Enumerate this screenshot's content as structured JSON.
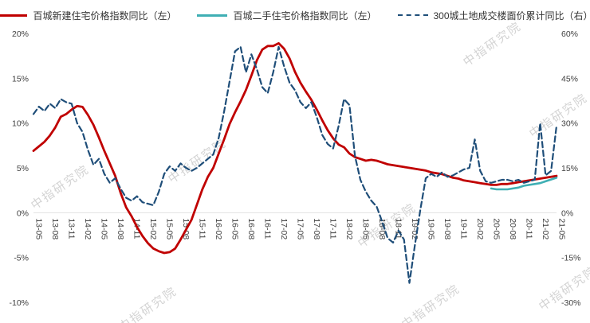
{
  "watermark": {
    "text": "中指研究院"
  },
  "legend": [
    {
      "label": "百城新建住宅价格指数同比（左）",
      "color": "#c00000",
      "style": "solid"
    },
    {
      "label": "百城二手住宅价格指数同比（左）",
      "color": "#3fafb4",
      "style": "solid"
    },
    {
      "label": "300城土地成交楼面价累计同比（右）",
      "color": "#1f4e79",
      "style": "dashed"
    }
  ],
  "chart_data": {
    "type": "line",
    "title": "",
    "x": [
      "13-05",
      "13-06",
      "13-07",
      "13-08",
      "13-09",
      "13-10",
      "13-11",
      "13-12",
      "14-01",
      "14-02",
      "14-03",
      "14-04",
      "14-05",
      "14-06",
      "14-07",
      "14-08",
      "14-09",
      "14-10",
      "14-11",
      "14-12",
      "15-01",
      "15-02",
      "15-03",
      "15-04",
      "15-05",
      "15-06",
      "15-07",
      "15-08",
      "15-09",
      "15-10",
      "15-11",
      "15-12",
      "16-01",
      "16-02",
      "16-03",
      "16-04",
      "16-05",
      "16-06",
      "16-07",
      "16-08",
      "16-09",
      "16-10",
      "16-11",
      "16-12",
      "17-01",
      "17-02",
      "17-03",
      "17-04",
      "17-05",
      "17-06",
      "17-07",
      "17-08",
      "17-09",
      "17-10",
      "17-11",
      "17-12",
      "18-01",
      "18-02",
      "18-03",
      "18-04",
      "18-05",
      "18-06",
      "18-07",
      "18-08",
      "18-09",
      "18-10",
      "18-11",
      "18-12",
      "19-01",
      "19-02",
      "19-03",
      "19-04",
      "19-05",
      "19-06",
      "19-07",
      "19-08",
      "19-09",
      "19-10",
      "19-11",
      "19-12",
      "20-01",
      "20-02",
      "20-03",
      "20-04",
      "20-05",
      "20-06",
      "20-07",
      "20-08",
      "20-09",
      "20-10",
      "20-11",
      "20-12",
      "21-01",
      "21-02",
      "21-03",
      "21-04",
      "21-05"
    ],
    "x_tick_every": 3,
    "left_axis": {
      "min": -10,
      "max": 20,
      "tick_values": [
        20,
        15,
        10,
        5,
        0,
        -5,
        -10
      ],
      "tick_labels": [
        "20%",
        "15%",
        "10%",
        "5%",
        "0%",
        "-5%",
        "-10%"
      ]
    },
    "right_axis": {
      "min": -30,
      "max": 60,
      "tick_values": [
        60,
        45,
        30,
        15,
        0,
        -15,
        -30
      ],
      "tick_labels": [
        "60%",
        "45%",
        "30%",
        "15%",
        "0%",
        "-15%",
        "-30%"
      ]
    },
    "legend_position": "top",
    "grid": false,
    "series": [
      {
        "id": "new-home-price-yoy",
        "name": "百城新建住宅价格指数同比（左）",
        "axis": "left",
        "color": "#c00000",
        "width": 2.8,
        "dash": null,
        "values": [
          6.9,
          7.4,
          7.9,
          8.6,
          9.5,
          10.7,
          11.0,
          11.5,
          11.9,
          11.8,
          10.9,
          9.8,
          8.4,
          6.9,
          5.5,
          4.1,
          2.2,
          0.6,
          -0.4,
          -1.6,
          -2.6,
          -3.4,
          -4.0,
          -4.3,
          -4.5,
          -4.4,
          -4.0,
          -3.0,
          -1.9,
          -0.8,
          0.9,
          2.6,
          4.0,
          5.0,
          6.6,
          8.2,
          9.9,
          11.2,
          12.4,
          13.7,
          15.3,
          17.0,
          18.2,
          18.6,
          18.6,
          18.9,
          18.3,
          17.2,
          15.7,
          14.5,
          13.5,
          12.6,
          11.5,
          10.3,
          9.2,
          8.3,
          7.6,
          7.3,
          6.6,
          6.2,
          6.0,
          5.8,
          5.9,
          5.8,
          5.6,
          5.4,
          5.3,
          5.2,
          5.1,
          5.0,
          4.9,
          4.8,
          4.7,
          4.5,
          4.4,
          4.3,
          4.1,
          3.9,
          3.8,
          3.6,
          3.5,
          3.4,
          3.3,
          3.2,
          3.1,
          3.1,
          3.2,
          3.2,
          3.3,
          3.4,
          3.5,
          3.6,
          3.7,
          3.8,
          3.9,
          4.0,
          4.1
        ]
      },
      {
        "id": "secondhand-price-yoy",
        "name": "百城二手住宅价格指数同比（左）",
        "axis": "left",
        "color": "#3fafb4",
        "width": 2.6,
        "dash": null,
        "values": [
          null,
          null,
          null,
          null,
          null,
          null,
          null,
          null,
          null,
          null,
          null,
          null,
          null,
          null,
          null,
          null,
          null,
          null,
          null,
          null,
          null,
          null,
          null,
          null,
          null,
          null,
          null,
          null,
          null,
          null,
          null,
          null,
          null,
          null,
          null,
          null,
          null,
          null,
          null,
          null,
          null,
          null,
          null,
          null,
          null,
          null,
          null,
          null,
          null,
          null,
          null,
          null,
          null,
          null,
          null,
          null,
          null,
          null,
          null,
          null,
          null,
          null,
          null,
          null,
          null,
          null,
          null,
          null,
          null,
          null,
          null,
          null,
          null,
          null,
          null,
          null,
          null,
          null,
          null,
          null,
          null,
          null,
          null,
          null,
          2.7,
          2.6,
          2.6,
          2.6,
          2.7,
          2.8,
          3.0,
          3.1,
          3.2,
          3.3,
          3.5,
          3.7,
          3.9
        ]
      },
      {
        "id": "land-floor-price-yoy",
        "name": "300城土地成交楼面价累计同比（右）",
        "axis": "right",
        "color": "#1f4e79",
        "width": 2.2,
        "dash": "7 4",
        "values": [
          33,
          35.5,
          34,
          36.5,
          35,
          38,
          37,
          36.5,
          30,
          27,
          21,
          16,
          18,
          13,
          10,
          11.5,
          8,
          5,
          4,
          5.5,
          3.5,
          3,
          2.5,
          7,
          13,
          15.5,
          14,
          16.5,
          15,
          14,
          15,
          16.5,
          18,
          19.5,
          25,
          34,
          44,
          54,
          55.5,
          47,
          53,
          48,
          42,
          40,
          47,
          55.5,
          49,
          43.5,
          41,
          37,
          35,
          37,
          32,
          26,
          23,
          21.5,
          29,
          38,
          36,
          19,
          11,
          7,
          4,
          2,
          -3,
          -8.5,
          -10,
          -6,
          -9,
          -23.5,
          -11,
          1,
          11.5,
          13,
          12,
          13.5,
          12,
          12.5,
          13.5,
          14.5,
          15,
          24.5,
          14,
          10.5,
          10,
          10.5,
          11,
          11,
          10.5,
          11,
          10,
          10.5,
          11,
          30,
          12.5,
          14,
          29
        ]
      }
    ]
  }
}
